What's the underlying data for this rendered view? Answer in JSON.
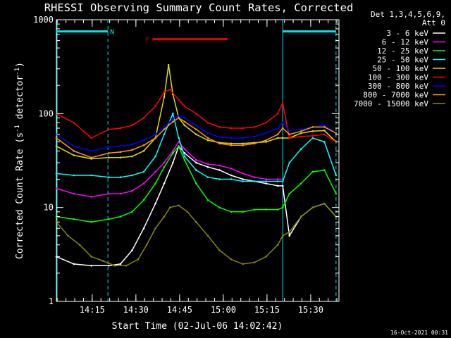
{
  "chart_data": {
    "type": "line",
    "title": "RHESSI Observing Summary Count Rates, Corrected",
    "xlabel": "Start Time (02-Jul-06 14:02:42)",
    "ylabel_main": "Corrected Count Rate (s",
    "ylabel_sup1": "-1",
    "ylabel_mid": " detector",
    "ylabel_sup2": "-1",
    "ylabel_end": ")",
    "yscale": "log",
    "ylim": [
      1,
      1000
    ],
    "xlim_minutes": [
      0,
      97
    ],
    "x_ticks": [
      {
        "label": "14:15",
        "minutes": 12.3
      },
      {
        "label": "14:30",
        "minutes": 27.3
      },
      {
        "label": "14:45",
        "minutes": 42.3
      },
      {
        "label": "15:00",
        "minutes": 57.3
      },
      {
        "label": "15:15",
        "minutes": 72.3
      },
      {
        "label": "15:30",
        "minutes": 87.3
      }
    ],
    "y_ticks": [
      {
        "label": "1",
        "value": 1
      },
      {
        "label": "10",
        "value": 10
      },
      {
        "label": "100",
        "value": 100
      },
      {
        "label": "1000",
        "value": 1000
      }
    ],
    "legend_header": [
      "Det 1,3,4,5,6,9,",
      "Att 0"
    ],
    "legend_position": "right",
    "timestamp": "16-Oct-2021 00:31",
    "flags": [
      {
        "label": "N",
        "color": "#00e5ee",
        "segments": [
          [
            0,
            17.7
          ],
          [
            77.7,
            96.0
          ]
        ],
        "level": 750
      },
      {
        "label": "F",
        "color": "#e60000",
        "segments": [
          [
            33.0,
            58.8
          ]
        ],
        "level": 620
      }
    ],
    "night_boundaries": [
      17.7,
      77.7,
      96.0
    ],
    "series": [
      {
        "name": "3 - 6 keV",
        "color": "#ffffff",
        "x": [
          0,
          6,
          12,
          18,
          22,
          26,
          30,
          34,
          37,
          40,
          42,
          44,
          48,
          52,
          56,
          60,
          64,
          68,
          72,
          76,
          77.7,
          80,
          84,
          88,
          92,
          96
        ],
        "y": [
          3,
          2.5,
          2.4,
          2.4,
          2.5,
          3.5,
          6,
          11,
          18,
          30,
          45,
          38,
          30,
          27,
          25,
          22,
          20,
          19,
          18,
          17,
          17,
          5,
          8,
          10,
          11,
          8
        ]
      },
      {
        "name": "6 - 12 keV",
        "color": "#ff00ff",
        "x": [
          0,
          6,
          12,
          18,
          22,
          26,
          30,
          34,
          37,
          40,
          42,
          44,
          48,
          52,
          56,
          60,
          64,
          68,
          72,
          76,
          77.7
        ],
        "y": [
          16,
          14,
          13,
          14,
          14,
          15,
          18,
          24,
          30,
          40,
          50,
          42,
          32,
          29,
          28,
          26,
          23,
          21,
          20,
          20,
          20
        ]
      },
      {
        "name": "12 - 25 keV",
        "color": "#00ff00",
        "x": [
          0,
          6,
          12,
          18,
          22,
          26,
          30,
          34,
          37,
          40,
          42,
          44,
          48,
          52,
          56,
          60,
          64,
          68,
          72,
          76,
          77.7,
          80,
          84,
          88,
          92,
          96
        ],
        "y": [
          8,
          7.5,
          7,
          7.5,
          8,
          9,
          12,
          18,
          27,
          38,
          45,
          32,
          18,
          12,
          10,
          9,
          9,
          9.5,
          9.5,
          9.5,
          10,
          14,
          18,
          24,
          25,
          14
        ]
      },
      {
        "name": "25 - 50 keV",
        "color": "#00ffff",
        "x": [
          0,
          6,
          12,
          18,
          22,
          26,
          30,
          34,
          37,
          40,
          42,
          44,
          48,
          52,
          56,
          60,
          64,
          68,
          72,
          76,
          77.7,
          80,
          84,
          88,
          92,
          96
        ],
        "y": [
          23,
          22,
          22,
          21,
          21,
          22,
          24,
          35,
          60,
          100,
          55,
          35,
          25,
          21,
          20,
          20,
          19,
          19,
          19,
          19,
          19,
          30,
          42,
          55,
          50,
          22
        ]
      },
      {
        "name": "50 - 100 keV",
        "color": "#dddd00",
        "x": [
          0,
          6,
          12,
          18,
          22,
          26,
          30,
          34,
          37,
          38.5,
          40,
          42,
          44,
          48,
          52,
          56,
          60,
          64,
          68,
          72,
          76,
          77.7,
          80,
          84,
          88,
          92,
          96
        ],
        "y": [
          45,
          36,
          33,
          34,
          34,
          35,
          40,
          55,
          150,
          330,
          160,
          90,
          75,
          60,
          52,
          49,
          48,
          48,
          49,
          50,
          55,
          55,
          55,
          62,
          65,
          66,
          50
        ]
      },
      {
        "name": "100 - 300 keV",
        "color": "#ff0000",
        "x": [
          0,
          6,
          12,
          18,
          22,
          26,
          30,
          34,
          37,
          39,
          42,
          44,
          48,
          52,
          56,
          60,
          64,
          68,
          72,
          76,
          77.7,
          80,
          84,
          88,
          92,
          96
        ],
        "y": [
          100,
          80,
          55,
          68,
          70,
          75,
          90,
          120,
          170,
          180,
          140,
          120,
          100,
          80,
          72,
          70,
          70,
          72,
          80,
          100,
          130,
          55,
          57,
          58,
          60,
          50
        ]
      },
      {
        "name": "300 - 800 keV",
        "color": "#0000ff",
        "x": [
          0,
          6,
          12,
          18,
          22,
          26,
          30,
          34,
          37,
          40,
          42,
          44,
          48,
          52,
          56,
          60,
          64,
          68,
          72,
          76,
          77.7,
          80,
          84,
          88,
          92,
          96
        ],
        "y": [
          60,
          45,
          40,
          44,
          45,
          47,
          52,
          60,
          72,
          88,
          95,
          90,
          75,
          62,
          56,
          55,
          55,
          57,
          62,
          70,
          80,
          66,
          68,
          72,
          75,
          62
        ]
      },
      {
        "name": "800 - 7000 keV",
        "color": "#ff9900",
        "x": [
          0,
          6,
          12,
          18,
          22,
          26,
          30,
          34,
          37,
          40,
          42,
          44,
          48,
          52,
          56,
          60,
          64,
          68,
          72,
          76,
          77.7,
          80,
          84,
          88,
          92,
          96
        ],
        "y": [
          55,
          40,
          34,
          38,
          39,
          41,
          46,
          55,
          68,
          82,
          90,
          82,
          68,
          55,
          48,
          46,
          46,
          48,
          52,
          60,
          70,
          60,
          65,
          72,
          72,
          62
        ]
      },
      {
        "name": "7000 - 15000 keV",
        "color": "#888800",
        "x": [
          0,
          4,
          8,
          12,
          16,
          20,
          24,
          28,
          31,
          34,
          37,
          39,
          42,
          45,
          48,
          52,
          56,
          60,
          64,
          68,
          72,
          76,
          77.7,
          80,
          84,
          88,
          92,
          96
        ],
        "y": [
          7,
          5,
          4,
          3,
          2.7,
          2.4,
          2.4,
          2.8,
          4,
          6,
          8,
          10,
          10.5,
          9,
          7,
          5,
          3.5,
          2.8,
          2.5,
          2.6,
          3,
          4,
          5,
          5.5,
          8,
          10,
          11,
          8
        ]
      }
    ]
  }
}
